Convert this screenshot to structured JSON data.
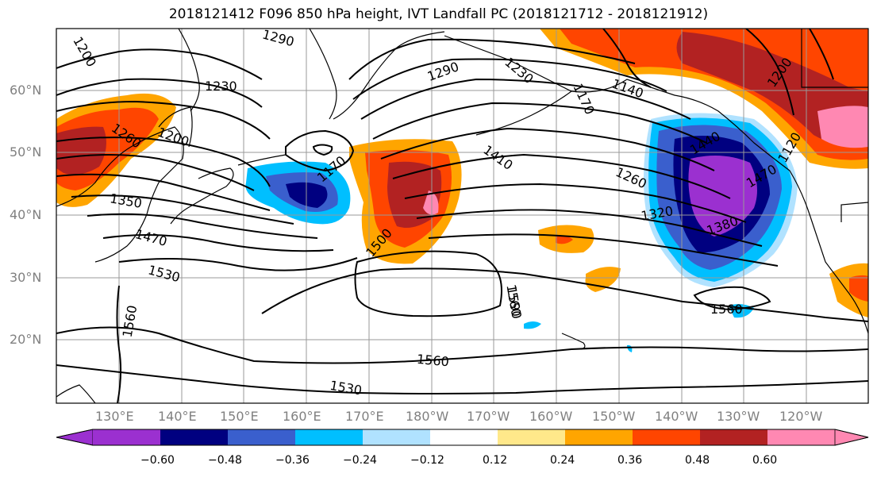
{
  "title": "2018121412 F096 850 hPa height, IVT Landfall PC (2018121712 - 2018121912)",
  "latitude_labels": [
    "60°N",
    "50°N",
    "40°N",
    "30°N",
    "20°N"
  ],
  "longitude_labels": [
    "130°E",
    "140°E",
    "150°E",
    "160°E",
    "170°E",
    "180°W",
    "170°W",
    "160°W",
    "150°W",
    "140°W",
    "130°W",
    "120°W"
  ],
  "contour_labels": [
    "1200",
    "1290",
    "1230",
    "1290",
    "1230",
    "1170",
    "1140",
    "1200",
    "1260",
    "1200",
    "1350",
    "1470",
    "1410",
    "1260",
    "1320",
    "1170",
    "1380",
    "1440",
    "1120",
    "1470",
    "1500",
    "1530",
    "1560",
    "1590",
    "1560",
    "1560",
    "1530"
  ],
  "colorbar": {
    "ticks": [
      "−0.60",
      "−0.48",
      "−0.36",
      "−0.24",
      "−0.12",
      "0.12",
      "0.24",
      "0.36",
      "0.48",
      "0.60"
    ],
    "colors": [
      "#9b30d0",
      "#000080",
      "#3a5fcd",
      "#00bfff",
      "#b0e2ff",
      "#ffffff",
      "#ffe88a",
      "#ffa500",
      "#ff4500",
      "#b22222",
      "#ff88b2"
    ]
  }
}
